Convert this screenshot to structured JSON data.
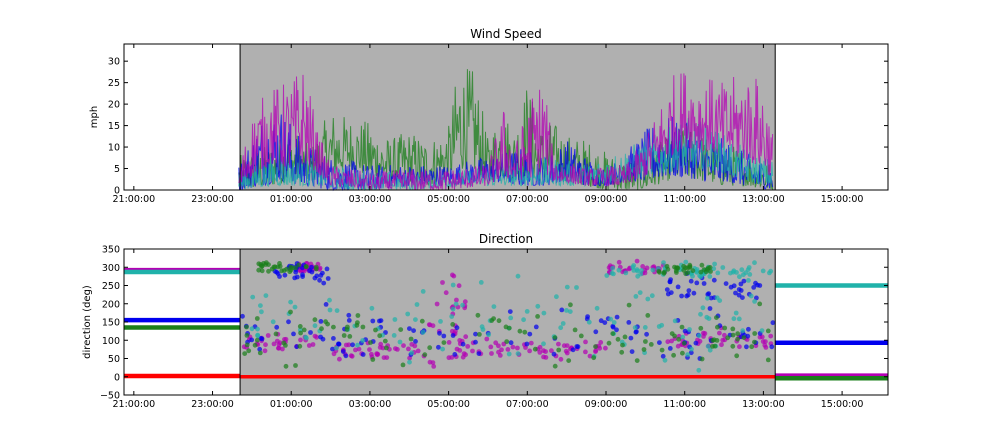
{
  "colors": {
    "shade": "#b0b0b0",
    "red": "#ff0000",
    "green": "#1a7f1a",
    "blue": "#0000ee",
    "cyan": "#20b2aa",
    "magenta": "#b400b4"
  },
  "chart_data": [
    {
      "type": "line",
      "title": "Wind Speed",
      "xlabel": "",
      "ylabel": "mph",
      "xlim": [
        "20:45:00",
        "16:10:00 (next day)"
      ],
      "ylim": [
        0,
        34
      ],
      "x_tick_labels": [
        "21:00:00",
        "23:00:00",
        "01:00:00",
        "03:00:00",
        "05:00:00",
        "07:00:00",
        "09:00:00",
        "11:00:00",
        "13:00:00",
        "15:00:00"
      ],
      "y_tick_labels": [
        "0",
        "5",
        "10",
        "15",
        "20",
        "25",
        "30"
      ],
      "shaded_region": [
        "23:42:00",
        "13:18:00 (next day)"
      ],
      "grid": false,
      "series": [
        {
          "color": "green",
          "envelope": [
            [
              "23:40",
              0,
              8
            ],
            [
              "00:30",
              1,
              11
            ],
            [
              "01:00",
              2,
              15
            ],
            [
              "01:30",
              2,
              10
            ],
            [
              "02:00",
              3,
              19
            ],
            [
              "02:30",
              5,
              17
            ],
            [
              "03:00",
              3,
              16
            ],
            [
              "03:30",
              2,
              12
            ],
            [
              "04:00",
              2,
              14
            ],
            [
              "04:30",
              1,
              12
            ],
            [
              "05:00",
              3,
              15
            ],
            [
              "05:15",
              5,
              30
            ],
            [
              "05:40",
              4,
              28
            ],
            [
              "06:00",
              2,
              12
            ],
            [
              "06:20",
              3,
              20
            ],
            [
              "06:40",
              2,
              15
            ],
            [
              "07:00",
              3,
              26
            ],
            [
              "07:20",
              2,
              15
            ],
            [
              "07:40",
              3,
              16
            ],
            [
              "08:00",
              2,
              13
            ],
            [
              "08:30",
              1,
              12
            ],
            [
              "09:00",
              0,
              9
            ],
            [
              "09:30",
              0,
              7
            ],
            [
              "10:00",
              0,
              9
            ],
            [
              "10:30",
              2,
              12
            ],
            [
              "11:00",
              3,
              16
            ],
            [
              "11:30",
              2,
              13
            ],
            [
              "12:00",
              1,
              11
            ],
            [
              "12:30",
              1,
              10
            ],
            [
              "13:15",
              0,
              6
            ]
          ]
        },
        {
          "color": "blue",
          "envelope": [
            [
              "23:40",
              0,
              6
            ],
            [
              "00:15",
              1,
              18
            ],
            [
              "00:45",
              2,
              20
            ],
            [
              "01:15",
              1,
              12
            ],
            [
              "02:00",
              0,
              8
            ],
            [
              "03:00",
              0,
              6
            ],
            [
              "04:00",
              1,
              6
            ],
            [
              "05:00",
              1,
              6
            ],
            [
              "06:00",
              2,
              8
            ],
            [
              "06:50",
              1,
              10
            ],
            [
              "07:30",
              1,
              8
            ],
            [
              "08:00",
              2,
              12
            ],
            [
              "08:30",
              1,
              8
            ],
            [
              "09:00",
              1,
              5
            ],
            [
              "09:30",
              2,
              9
            ],
            [
              "10:00",
              2,
              14
            ],
            [
              "10:30",
              3,
              18
            ],
            [
              "11:00",
              3,
              16
            ],
            [
              "11:30",
              2,
              13
            ],
            [
              "12:00",
              2,
              12
            ],
            [
              "12:30",
              1,
              9
            ],
            [
              "13:15",
              0,
              6
            ]
          ]
        },
        {
          "color": "cyan",
          "envelope": [
            [
              "23:40",
              0,
              4
            ],
            [
              "00:30",
              1,
              8
            ],
            [
              "01:30",
              1,
              7
            ],
            [
              "02:30",
              0,
              5
            ],
            [
              "04:00",
              0,
              4
            ],
            [
              "05:30",
              1,
              5
            ],
            [
              "06:30",
              1,
              6
            ],
            [
              "07:30",
              1,
              8
            ],
            [
              "08:30",
              1,
              6
            ],
            [
              "09:30",
              2,
              10
            ],
            [
              "10:30",
              4,
              14
            ],
            [
              "11:00",
              5,
              17
            ],
            [
              "11:30",
              5,
              16
            ],
            [
              "12:00",
              4,
              13
            ],
            [
              "12:30",
              2,
              10
            ],
            [
              "13:15",
              1,
              7
            ]
          ]
        },
        {
          "color": "magenta",
          "envelope": [
            [
              "23:40",
              0,
              6
            ],
            [
              "00:05",
              4,
              20
            ],
            [
              "00:30",
              6,
              24
            ],
            [
              "01:00",
              5,
              26
            ],
            [
              "01:20",
              6,
              30
            ],
            [
              "01:40",
              4,
              14
            ],
            [
              "02:00",
              1,
              6
            ],
            [
              "03:00",
              0,
              4
            ],
            [
              "04:00",
              0,
              5
            ],
            [
              "05:00",
              0,
              5
            ],
            [
              "06:00",
              1,
              6
            ],
            [
              "06:25",
              3,
              20
            ],
            [
              "06:40",
              2,
              10
            ],
            [
              "07:10",
              3,
              24
            ],
            [
              "07:25",
              4,
              28
            ],
            [
              "07:40",
              2,
              8
            ],
            [
              "08:30",
              1,
              5
            ],
            [
              "09:30",
              1,
              6
            ],
            [
              "10:00",
              3,
              12
            ],
            [
              "10:40",
              8,
              27
            ],
            [
              "11:00",
              10,
              29
            ],
            [
              "11:30",
              9,
              27
            ],
            [
              "12:00",
              8,
              25
            ],
            [
              "12:30",
              7,
              28
            ],
            [
              "13:00",
              5,
              26
            ],
            [
              "13:15",
              2,
              14
            ]
          ]
        }
      ]
    },
    {
      "type": "scatter",
      "title": "Direction",
      "xlabel": "",
      "ylabel": "direction (deg)",
      "xlim": [
        "20:45:00",
        "16:10:00 (next day)"
      ],
      "ylim": [
        -50,
        350
      ],
      "x_tick_labels": [
        "21:00:00",
        "23:00:00",
        "01:00:00",
        "03:00:00",
        "05:00:00",
        "07:00:00",
        "09:00:00",
        "11:00:00",
        "13:00:00",
        "15:00:00"
      ],
      "y_tick_labels": [
        "−50",
        "0",
        "50",
        "100",
        "150",
        "200",
        "250",
        "300",
        "350"
      ],
      "shaded_region": [
        "23:42:00",
        "13:18:00 (next day)"
      ],
      "grid": false,
      "constant_segments": [
        {
          "color": "magenta",
          "x": [
            "20:45",
            "23:42"
          ],
          "y": 292
        },
        {
          "color": "cyan",
          "x": [
            "20:45",
            "23:42"
          ],
          "y": 287
        },
        {
          "color": "blue",
          "x": [
            "20:45",
            "23:42"
          ],
          "y": 155
        },
        {
          "color": "green",
          "x": [
            "20:45",
            "23:42"
          ],
          "y": 135
        },
        {
          "color": "red",
          "x": [
            "20:45",
            "23:42"
          ],
          "y": 2
        },
        {
          "color": "cyan",
          "x": [
            "13:18",
            "16:10"
          ],
          "y": 250
        },
        {
          "color": "blue",
          "x": [
            "13:18",
            "16:10"
          ],
          "y": 93
        },
        {
          "color": "magenta",
          "x": [
            "13:18",
            "16:10"
          ],
          "y": 3
        },
        {
          "color": "green",
          "x": [
            "13:18",
            "16:10"
          ],
          "y": -4
        },
        {
          "color": "red",
          "x": [
            "23:42",
            "13:18"
          ],
          "y": 0
        }
      ],
      "point_clusters": [
        {
          "color": "magenta",
          "x": [
            "23:45",
            "01:45"
          ],
          "y_center": 95,
          "y_spread": 40
        },
        {
          "color": "magenta",
          "x": [
            "02:00",
            "04:30"
          ],
          "y_center": 70,
          "y_spread": 35
        },
        {
          "color": "magenta",
          "x": [
            "05:00",
            "09:00"
          ],
          "y_center": 75,
          "y_spread": 40
        },
        {
          "color": "magenta",
          "x": [
            "09:00",
            "10:30"
          ],
          "y_center": 295,
          "y_spread": 25
        },
        {
          "color": "magenta",
          "x": [
            "10:30",
            "13:15"
          ],
          "y_center": 100,
          "y_spread": 40
        },
        {
          "color": "magenta",
          "x": [
            "01:10",
            "01:45"
          ],
          "y_center": 300,
          "y_spread": 20
        },
        {
          "color": "magenta",
          "x": [
            "04:30",
            "05:30"
          ],
          "y_center": 150,
          "y_spread": 170
        },
        {
          "color": "blue",
          "x": [
            "23:45",
            "13:15"
          ],
          "y_center": 120,
          "y_spread": 110
        },
        {
          "color": "blue",
          "x": [
            "00:30",
            "02:00"
          ],
          "y_center": 285,
          "y_spread": 40
        },
        {
          "color": "blue",
          "x": [
            "10:30",
            "13:00"
          ],
          "y_center": 240,
          "y_spread": 60
        },
        {
          "color": "cyan",
          "x": [
            "23:45",
            "13:15"
          ],
          "y_center": 150,
          "y_spread": 170
        },
        {
          "color": "cyan",
          "x": [
            "09:00",
            "13:15"
          ],
          "y_center": 290,
          "y_spread": 30
        },
        {
          "color": "green",
          "x": [
            "00:10",
            "01:40"
          ],
          "y_center": 300,
          "y_spread": 25
        },
        {
          "color": "green",
          "x": [
            "10:20",
            "11:40"
          ],
          "y_center": 295,
          "y_spread": 20
        },
        {
          "color": "green",
          "x": [
            "23:45",
            "13:15"
          ],
          "y_center": 110,
          "y_spread": 110
        }
      ]
    }
  ]
}
